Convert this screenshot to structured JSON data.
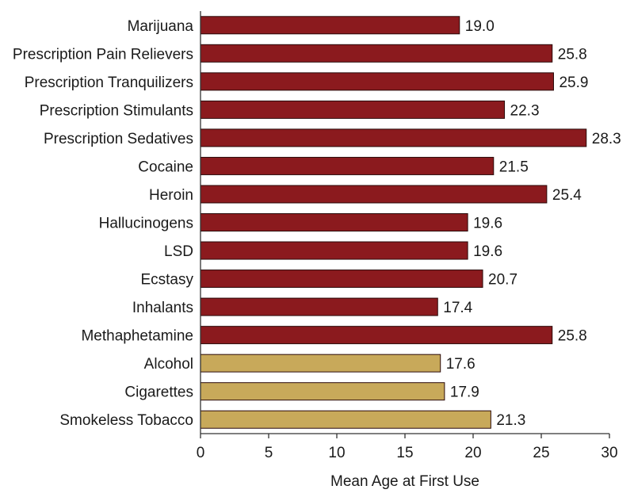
{
  "chart_data": {
    "type": "bar",
    "orientation": "horizontal",
    "categories": [
      "Marijuana",
      "Prescription Pain Relievers",
      "Prescription Tranquilizers",
      "Prescription Stimulants",
      "Prescription Sedatives",
      "Cocaine",
      "Heroin",
      "Hallucinogens",
      "LSD",
      "Ecstasy",
      "Inhalants",
      "Methaphetamine",
      "Alcohol",
      "Cigarettes",
      "Smokeless Tobacco"
    ],
    "values": [
      19.0,
      25.8,
      25.9,
      22.3,
      28.3,
      21.5,
      25.4,
      19.6,
      19.6,
      20.7,
      17.4,
      25.8,
      17.6,
      17.9,
      21.3
    ],
    "value_labels": [
      "19.0",
      "25.8",
      "25.9",
      "22.3",
      "28.3",
      "21.5",
      "25.4",
      "19.6",
      "19.6",
      "20.7",
      "17.4",
      "25.8",
      "17.6",
      "17.9",
      "21.3"
    ],
    "bar_colors": [
      "#8b1a1e",
      "#8b1a1e",
      "#8b1a1e",
      "#8b1a1e",
      "#8b1a1e",
      "#8b1a1e",
      "#8b1a1e",
      "#8b1a1e",
      "#8b1a1e",
      "#8b1a1e",
      "#8b1a1e",
      "#8b1a1e",
      "#c8a95a",
      "#c8a95a",
      "#c8a95a"
    ],
    "xlabel": "Mean Age at First Use",
    "ylabel": "",
    "title": "",
    "xlim": [
      0,
      30
    ],
    "xticks": [
      0,
      5,
      10,
      15,
      20,
      25,
      30
    ],
    "grid": false,
    "legend": "none"
  }
}
